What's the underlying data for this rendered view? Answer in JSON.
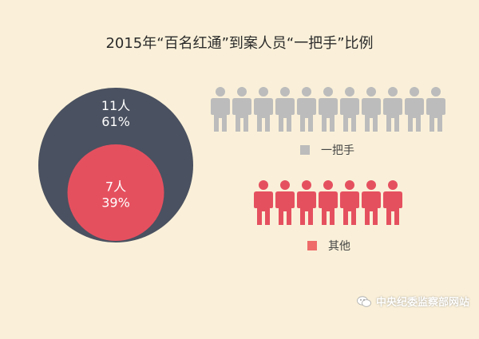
{
  "title": "2015年“百名红通”到案人员“一把手”比例",
  "chart_data": {
    "type": "pie",
    "title": "2015年“百名红通”到案人员“一把手”比例",
    "segments": [
      {
        "name": "一把手",
        "count": 11,
        "count_label": "11人",
        "percent_label": "61%",
        "color": "#4a5160",
        "icon_color": "#bcbcbc"
      },
      {
        "name": "其他",
        "count": 7,
        "count_label": "7人",
        "percent_label": "39%",
        "color": "#e5505f",
        "icon_color": "#e5505f"
      }
    ],
    "legend": [
      {
        "label": "一把手",
        "color": "#bcbcbc"
      },
      {
        "label": "其他",
        "color": "#ee6b6a"
      }
    ]
  },
  "watermark": {
    "text": "中央纪委监察部网站",
    "icon": "wechat-icon"
  }
}
